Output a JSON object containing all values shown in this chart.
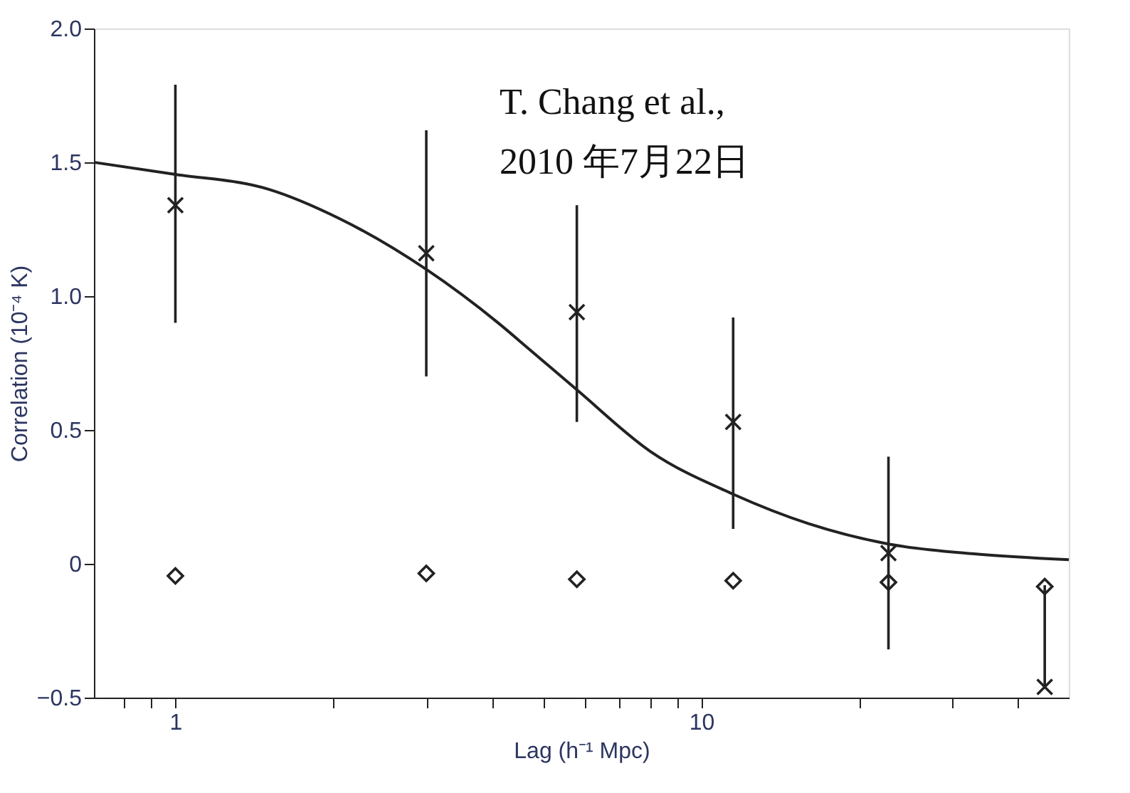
{
  "chart_data": {
    "type": "scatter",
    "xlabel": "Lag (h⁻¹ Mpc)",
    "ylabel": "Correlation (10⁻⁴ K)",
    "annotations": [
      "T. Chang et al.,",
      "2010 年7月22日"
    ],
    "xlim": [
      0.7,
      50
    ],
    "ylim": [
      -0.5,
      2.0
    ],
    "log": "x",
    "grid": false,
    "xticks": [
      {
        "value": 0.8,
        "label": null
      },
      {
        "value": 0.9,
        "label": null
      },
      1,
      {
        "value": 2,
        "label": null
      },
      {
        "value": 3,
        "label": null
      },
      {
        "value": 4,
        "label": null
      },
      {
        "value": 5,
        "label": null
      },
      {
        "value": 6,
        "label": null
      },
      {
        "value": 7,
        "label": null
      },
      {
        "value": 8,
        "label": null
      },
      {
        "value": 9,
        "label": null
      },
      10,
      {
        "value": 20,
        "label": null
      },
      {
        "value": 30,
        "label": null
      },
      {
        "value": 40,
        "label": null
      }
    ],
    "yticks": [
      {
        "value": -0.5,
        "label": "−0.5"
      },
      0,
      {
        "value": 0.5,
        "label": "0.5"
      },
      {
        "value": 1.0,
        "label": "1.0"
      },
      {
        "value": 1.5,
        "label": "1.5"
      },
      {
        "value": 2.0,
        "label": "2.0"
      }
    ],
    "series": [
      {
        "type": "line",
        "color": "#222222",
        "marker": "none",
        "line_style": "solid",
        "x": [
          0.7,
          1,
          1.5,
          2.05,
          3,
          4.11,
          4.72,
          5.8,
          8,
          11.5,
          16,
          22.7,
          33,
          50
        ],
        "values": [
          1.5,
          1.455,
          1.4,
          1.29,
          1.1,
          0.9,
          0.8,
          0.65,
          0.42,
          0.26,
          0.15,
          0.074,
          0.037,
          0.015
        ]
      },
      {
        "color": "#222222",
        "marker": "cross",
        "x": [
          1,
          3,
          5.8,
          11.5,
          22.7,
          45
        ],
        "values": [
          1.34,
          1.16,
          0.94,
          0.53,
          0.04,
          -0.46
        ],
        "errors": [
          [
            0.9,
            1.79
          ],
          [
            0.7,
            1.62
          ],
          [
            0.53,
            1.34
          ],
          [
            0.13,
            0.92
          ],
          [
            -0.32,
            0.4
          ],
          [
            -0.46,
            -0.08
          ]
        ]
      },
      {
        "color": "#222222",
        "marker": "diamond",
        "x": [
          1,
          3,
          5.8,
          11.5,
          22.7,
          45
        ],
        "values": [
          -0.045,
          -0.036,
          -0.058,
          -0.063,
          -0.069,
          -0.085
        ]
      }
    ]
  }
}
